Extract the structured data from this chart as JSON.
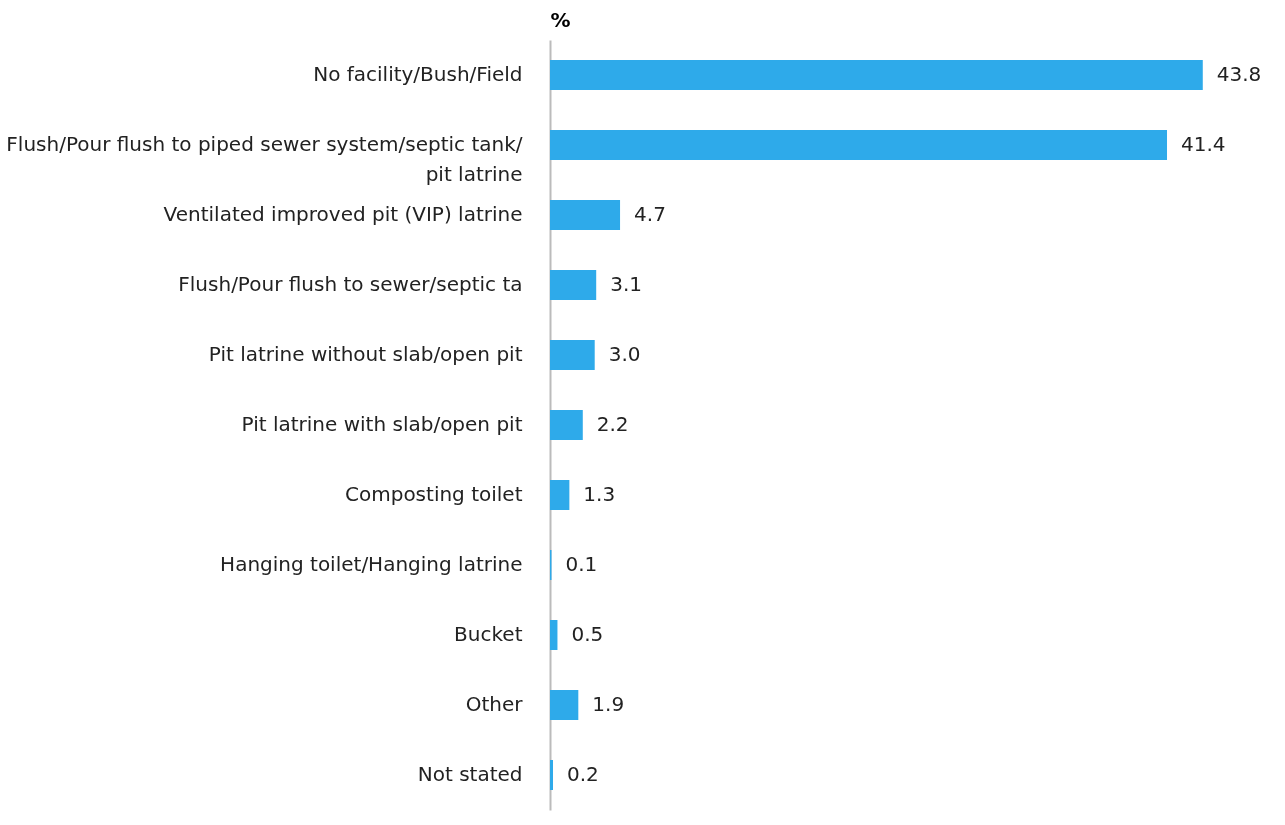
{
  "chart_data": {
    "type": "bar",
    "orientation": "horizontal",
    "xlabel": "%",
    "grid": false,
    "value_labels": [
      "43.8",
      "41.4",
      "4.7",
      "3.1",
      "3.0",
      "2.2",
      "1.3",
      "0.1",
      "0.5",
      "1.9",
      "0.2"
    ],
    "categories": [
      "No facility/Bush/Field",
      "Flush/Pour flush to piped sewer system/septic tank/ pit latrine",
      "Ventilated improved pit (VIP) latrine",
      "Flush/Pour flush to sewer/septic ta",
      "Pit latrine without slab/open pit",
      "Pit latrine with slab/open pit",
      "Composting toilet",
      "Hanging toilet/Hanging latrine",
      "Bucket",
      "Other",
      "Not stated"
    ],
    "values": [
      43.8,
      41.4,
      4.7,
      3.1,
      3.0,
      2.2,
      1.3,
      0.1,
      0.5,
      1.9,
      0.2
    ],
    "color": "#2eaaea"
  }
}
